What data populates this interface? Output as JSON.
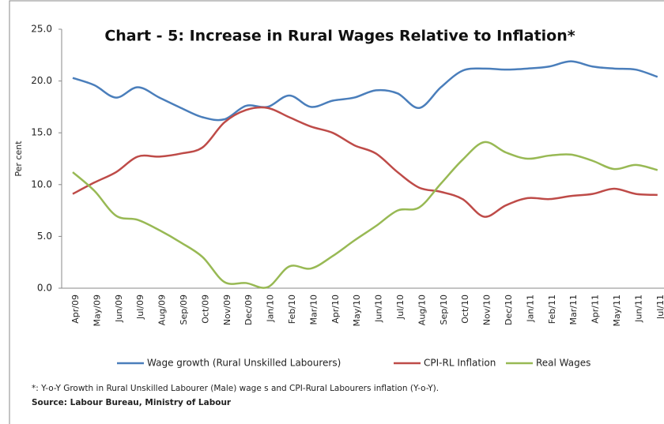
{
  "chart_data": {
    "type": "line",
    "title": "Chart - 5: Increase in Rural Wages Relative to Inflation*",
    "y_label": "Per cent",
    "categories": [
      "Apr/09",
      "May/09",
      "Jun/09",
      "Jul/09",
      "Aug/09",
      "Sep/09",
      "Oct/09",
      "Nov/09",
      "Dec/09",
      "Jan/10",
      "Feb/10",
      "Mar/10",
      "Apr/10",
      "May/10",
      "Jun/10",
      "Jul/10",
      "Aug/10",
      "Sep/10",
      "Oct/10",
      "Nov/10",
      "Dec/10",
      "Jan/11",
      "Feb/11",
      "Mar/11",
      "Apr/11",
      "May/11",
      "Jun/11",
      "Jul/11"
    ],
    "series": [
      {
        "name": "Wage growth (Rural Unskilled Labourers)",
        "color": "#4a7ebb",
        "values": [
          20.3,
          19.6,
          18.4,
          19.4,
          18.4,
          17.4,
          16.5,
          16.3,
          17.6,
          17.5,
          18.6,
          17.5,
          18.1,
          18.4,
          19.1,
          18.8,
          17.4,
          19.4,
          21.0,
          21.2,
          21.1,
          21.2,
          21.4,
          21.9,
          21.4,
          21.2,
          21.1,
          20.4
        ]
      },
      {
        "name": "CPI-RL Inflation",
        "color": "#be4b48",
        "values": [
          9.1,
          10.2,
          11.2,
          12.7,
          12.7,
          13.0,
          13.6,
          16.0,
          17.2,
          17.4,
          16.5,
          15.6,
          15.0,
          13.8,
          13.0,
          11.2,
          9.7,
          9.3,
          8.6,
          6.9,
          8.0,
          8.7,
          8.6,
          8.9,
          9.1,
          9.6,
          9.1,
          9.0
        ]
      },
      {
        "name": "Real Wages",
        "color": "#98b954",
        "values": [
          11.2,
          9.4,
          7.0,
          6.6,
          5.6,
          4.4,
          3.0,
          0.6,
          0.5,
          0.1,
          2.1,
          1.9,
          3.1,
          4.6,
          6.0,
          7.5,
          7.8,
          10.1,
          12.4,
          14.1,
          13.1,
          12.5,
          12.8,
          12.9,
          12.3,
          11.5,
          11.9,
          11.4
        ]
      }
    ],
    "ylim": [
      0,
      25
    ],
    "yticks": [
      {
        "value": 0,
        "label": "0.0"
      },
      {
        "value": 5,
        "label": "5.0"
      },
      {
        "value": 10,
        "label": "10.0"
      },
      {
        "value": 15,
        "label": "15.0"
      },
      {
        "value": 20,
        "label": "20.0"
      },
      {
        "value": 25,
        "label": "25.0"
      }
    ],
    "grid": false,
    "legend": "bottom",
    "footnote": "*: Y-o-Y Growth in Rural Unskilled Labourer (Male) wage s  and CPI-Rural Labourers inflation (Y-o-Y).",
    "source": "Source: Labour Bureau, Ministry of Labour"
  }
}
